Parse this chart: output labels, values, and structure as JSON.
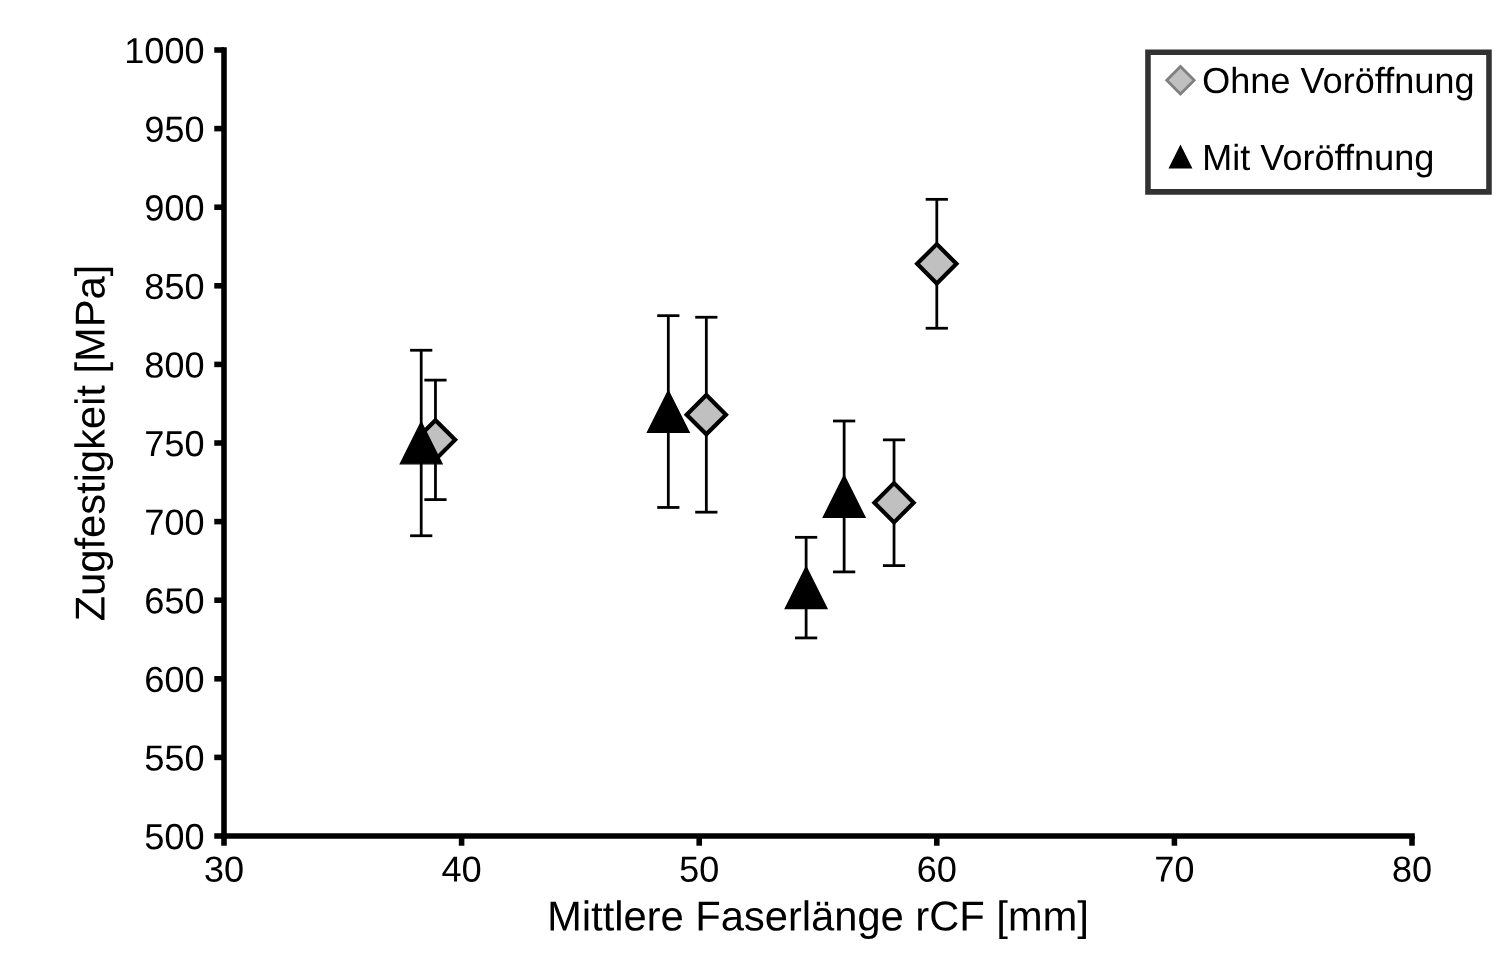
{
  "chart_data": {
    "type": "scatter",
    "xlabel": "Mittlere Faserlänge rCF [mm]",
    "ylabel": "Zugfestigkeit [MPa]",
    "xlim": [
      30,
      80
    ],
    "xticks": [
      30,
      40,
      50,
      60,
      70,
      80
    ],
    "ylim": [
      500,
      1000
    ],
    "yticks": [
      500,
      550,
      600,
      650,
      700,
      750,
      800,
      850,
      900,
      950,
      1000
    ],
    "grid": false,
    "legend": "top right",
    "series": [
      {
        "name": "Ohne Voröffnung",
        "color": "#c0c0c0",
        "marker": "diamond",
        "x": [
          38.9,
          50.3,
          58.2,
          60.0
        ],
        "values": [
          752,
          768,
          712,
          864
        ],
        "errors": [
          38,
          62,
          40,
          41
        ]
      },
      {
        "name": "Mit Voröffnung",
        "color": "#000000",
        "marker": "triangle",
        "x": [
          38.3,
          48.7,
          54.5,
          56.1
        ],
        "values": [
          750,
          770,
          658,
          716
        ],
        "errors": [
          59,
          61,
          32,
          48
        ]
      }
    ]
  }
}
